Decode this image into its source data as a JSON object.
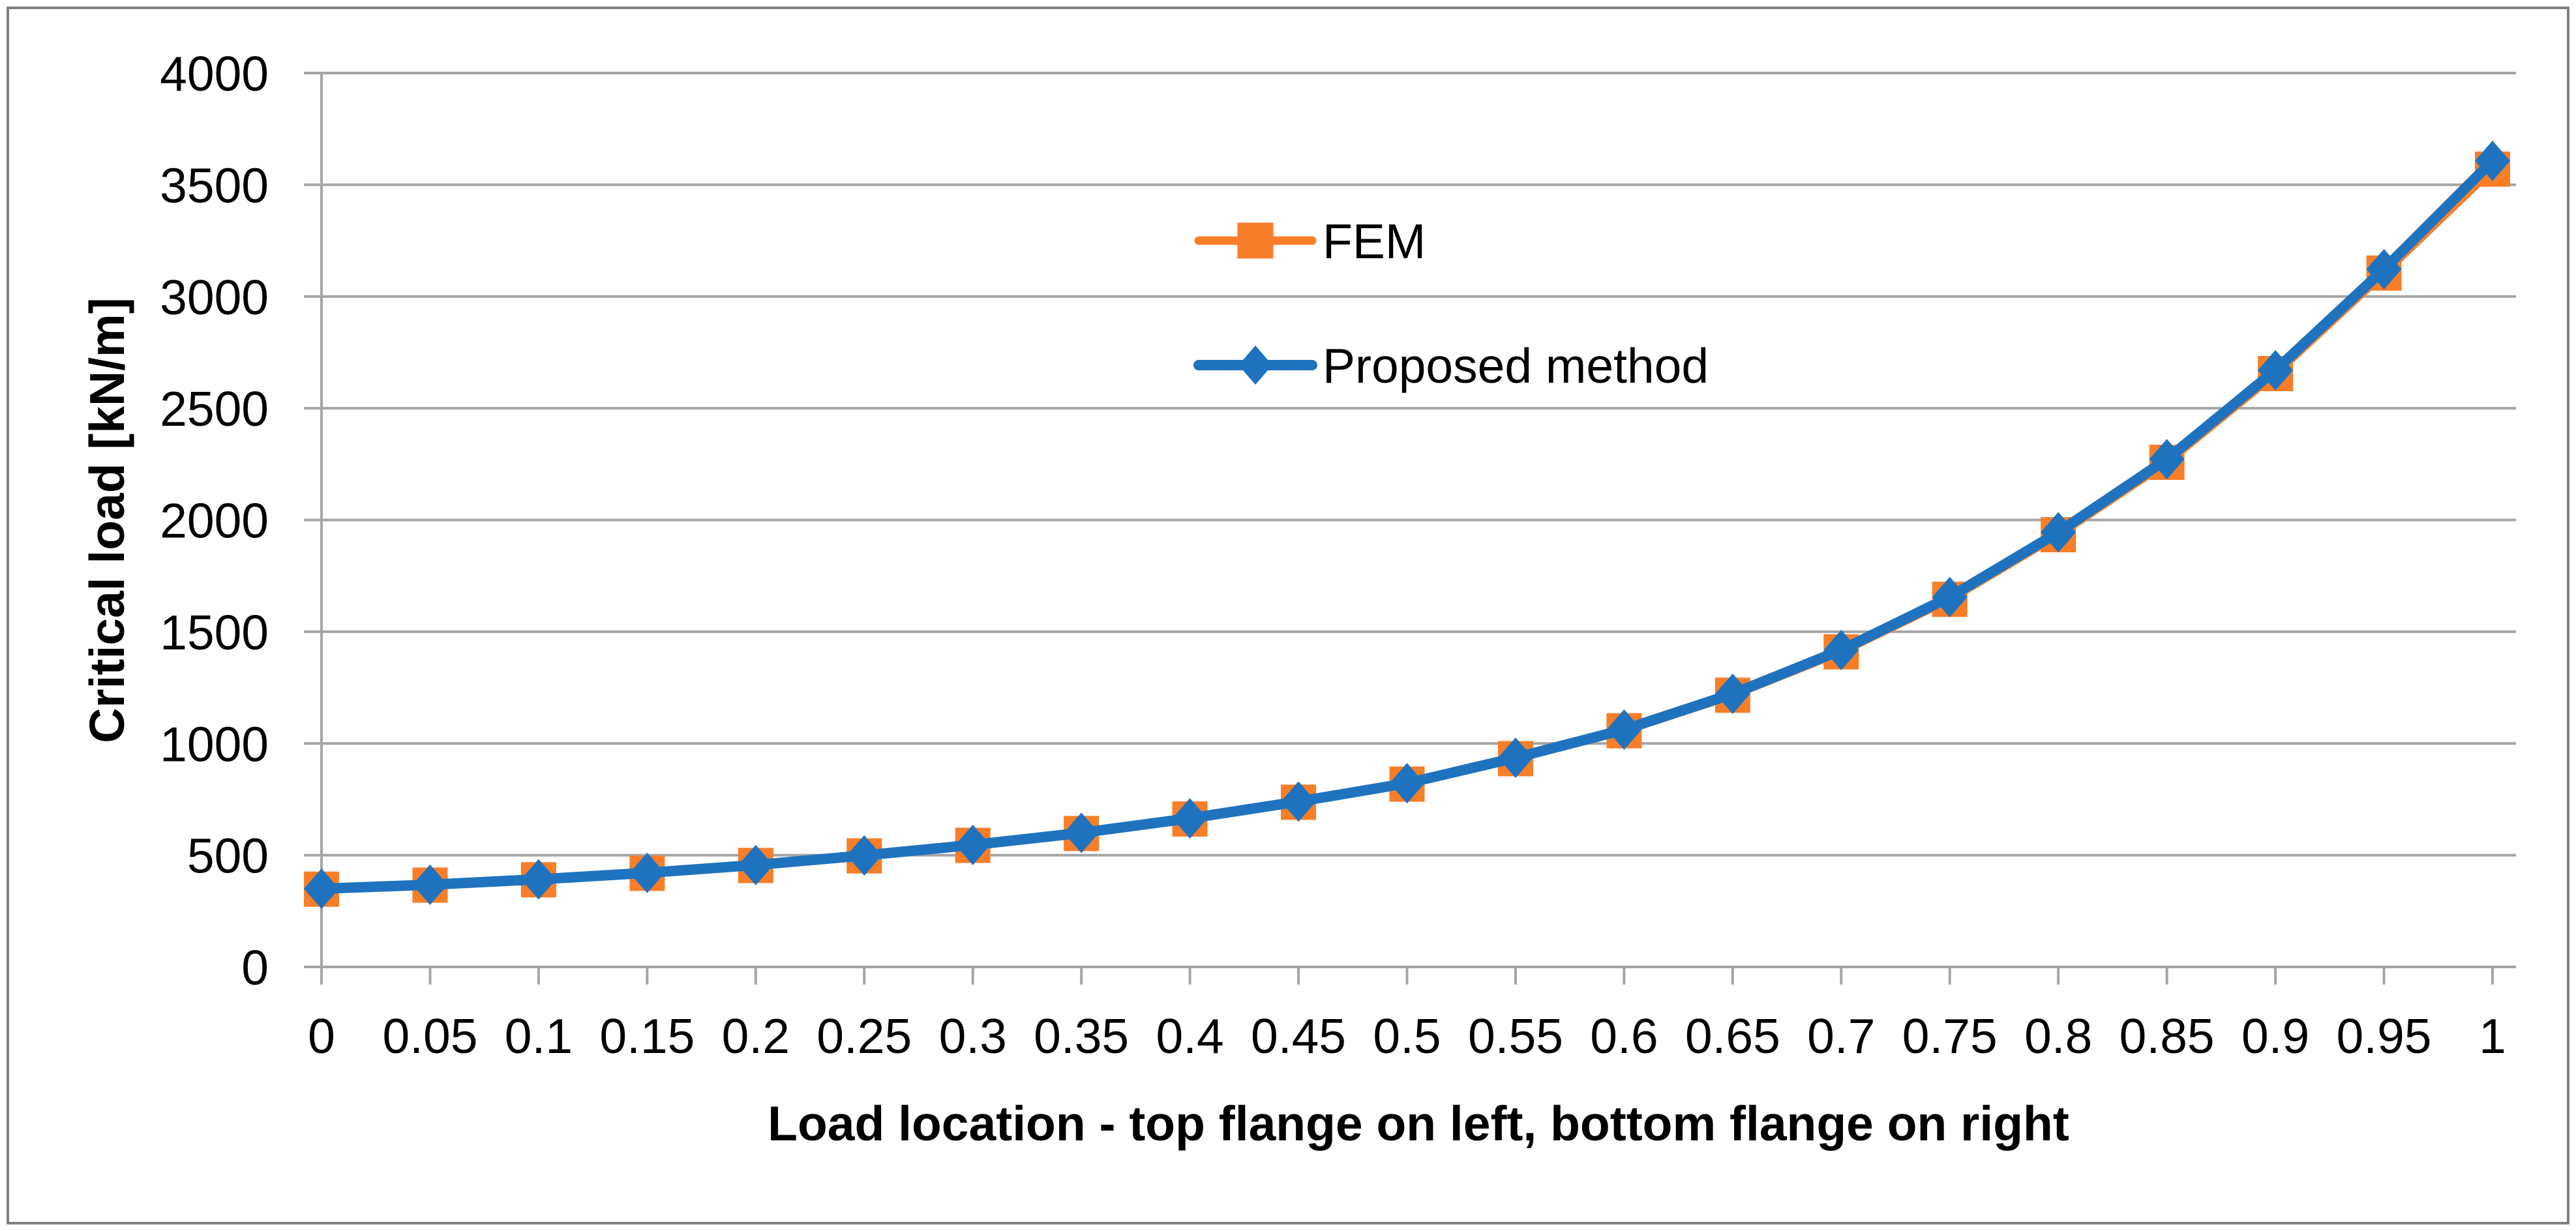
{
  "figure": {
    "background_color": "#FFFFFF",
    "border_color": "#7F7F7F"
  },
  "chart_data": {
    "type": "line",
    "title": "",
    "xlabel": "Load location - top flange on left, bottom flange on right",
    "ylabel": "Critical load [kN/m]",
    "x": [
      0,
      0.05,
      0.1,
      0.15,
      0.2,
      0.25,
      0.3,
      0.35,
      0.4,
      0.45,
      0.5,
      0.55,
      0.6,
      0.65,
      0.7,
      0.75,
      0.8,
      0.85,
      0.9,
      0.95,
      1
    ],
    "x_tick_labels": [
      "0",
      "0.05",
      "0.1",
      "0.15",
      "0.2",
      "0.25",
      "0.3",
      "0.35",
      "0.4",
      "0.45",
      "0.5",
      "0.55",
      "0.6",
      "0.65",
      "0.7",
      "0.75",
      "0.8",
      "0.85",
      "0.9",
      "0.95",
      "1"
    ],
    "y_ticks": [
      0,
      500,
      1000,
      1500,
      2000,
      2500,
      3000,
      3500,
      4000
    ],
    "y_tick_labels": [
      "0",
      "500",
      "1000",
      "1500",
      "2000",
      "2500",
      "3000",
      "3500",
      "4000"
    ],
    "xlim": [
      0,
      1
    ],
    "ylim": [
      0,
      4000
    ],
    "grid": "horizontal",
    "grid_color": "#A5A5A5",
    "axis_color": "#A5A5A5",
    "legend_position": "inside-upper-center",
    "series": [
      {
        "name": "FEM",
        "color": "#F87E28",
        "marker": "square",
        "line_width": 13,
        "values": [
          348,
          366,
          390,
          419,
          454,
          497,
          544,
          597,
          662,
          737,
          818,
          932,
          1057,
          1216,
          1410,
          1645,
          1934,
          2258,
          2655,
          3105,
          3570
        ]
      },
      {
        "name": "Proposed method",
        "color": "#1F73BE",
        "marker": "diamond",
        "line_width": 16,
        "values": [
          350,
          368,
          392,
          421,
          456,
          499,
          546,
          600,
          665,
          740,
          822,
          936,
          1062,
          1222,
          1418,
          1655,
          1945,
          2272,
          2670,
          3122,
          3607
        ]
      }
    ]
  }
}
